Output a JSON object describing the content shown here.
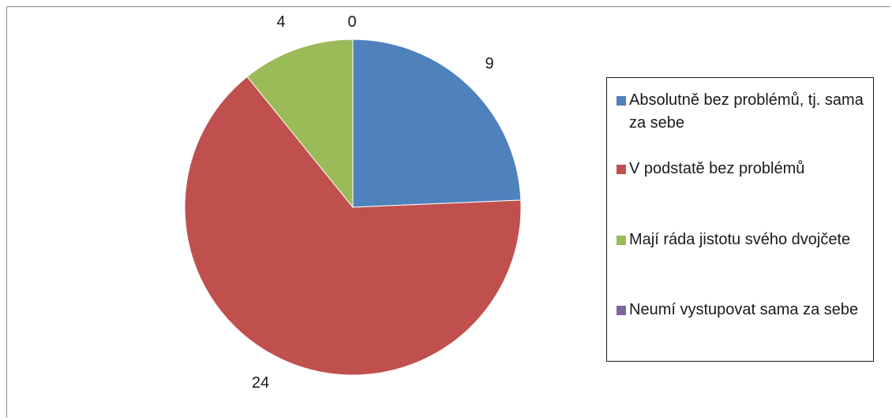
{
  "chart_data": {
    "type": "pie",
    "categories": [
      "Absolutně bez problémů, tj. sama za sebe",
      "V podstatě bez problémů",
      "Mají ráda jistotu svého dvojčete",
      "Neumí vystupovat sama za sebe"
    ],
    "values": [
      9,
      24,
      4,
      0
    ],
    "data_labels": [
      "9",
      "24",
      "4",
      "0"
    ],
    "colors": [
      "#4f81bd",
      "#c0504d",
      "#9bbb59",
      "#8064a2"
    ],
    "title": "",
    "legend_position": "right",
    "start_angle_deg": 0,
    "direction": "clockwise"
  }
}
